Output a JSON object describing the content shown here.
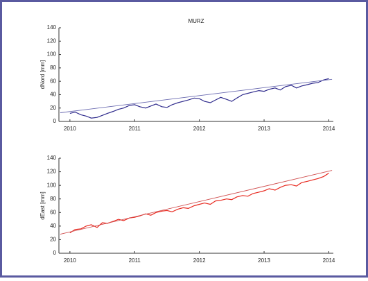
{
  "chart_data": [
    {
      "type": "line",
      "title": "MURZ",
      "y_label": "dNord [mm]",
      "x": [
        2010,
        2010.08,
        2010.17,
        2010.25,
        2010.33,
        2010.42,
        2010.5,
        2010.58,
        2010.67,
        2010.75,
        2010.83,
        2010.92,
        2011,
        2011.08,
        2011.17,
        2011.25,
        2011.33,
        2011.42,
        2011.5,
        2011.58,
        2011.67,
        2011.75,
        2011.83,
        2011.92,
        2012,
        2012.08,
        2012.17,
        2012.25,
        2012.33,
        2012.42,
        2012.5,
        2012.58,
        2012.67,
        2012.75,
        2012.83,
        2012.92,
        2013,
        2013.08,
        2013.17,
        2013.25,
        2013.33,
        2013.42,
        2013.5,
        2013.58,
        2013.67,
        2013.75,
        2013.83,
        2013.92,
        2014
      ],
      "series": [
        {
          "color": "#2e2a8c",
          "values": [
            12,
            14,
            10,
            8,
            5,
            6,
            9,
            12,
            15,
            18,
            20,
            24,
            25,
            22,
            20,
            23,
            26,
            22,
            21,
            25,
            28,
            30,
            32,
            35,
            34,
            30,
            28,
            32,
            36,
            33,
            30,
            35,
            40,
            42,
            44,
            46,
            45,
            48,
            50,
            47,
            52,
            54,
            50,
            53,
            55,
            57,
            58,
            62,
            64
          ]
        },
        {
          "color": "#6a6ab0",
          "x": [
            2009.85,
            2014.05
          ],
          "values": [
            13,
            63
          ]
        }
      ],
      "xlim": [
        2009.83,
        2014.07
      ],
      "ylim": [
        0,
        140
      ],
      "xticks": [
        2010,
        2011,
        2012,
        2013,
        2014
      ],
      "yticks": [
        0,
        20,
        40,
        60,
        80,
        100,
        120,
        140
      ]
    },
    {
      "type": "line",
      "y_label": "dEast [mm]",
      "x": [
        2010,
        2010.08,
        2010.17,
        2010.25,
        2010.33,
        2010.42,
        2010.5,
        2010.58,
        2010.67,
        2010.75,
        2010.83,
        2010.92,
        2011,
        2011.08,
        2011.17,
        2011.25,
        2011.33,
        2011.42,
        2011.5,
        2011.58,
        2011.67,
        2011.75,
        2011.83,
        2011.92,
        2012,
        2012.08,
        2012.17,
        2012.25,
        2012.33,
        2012.42,
        2012.5,
        2012.58,
        2012.67,
        2012.75,
        2012.83,
        2012.92,
        2013,
        2013.08,
        2013.17,
        2013.25,
        2013.33,
        2013.42,
        2013.5,
        2013.58,
        2013.67,
        2013.75,
        2013.83,
        2013.92,
        2014
      ],
      "series": [
        {
          "color": "#e8281e",
          "values": [
            30,
            35,
            36,
            40,
            42,
            38,
            45,
            44,
            47,
            50,
            48,
            52,
            53,
            55,
            58,
            56,
            60,
            62,
            63,
            61,
            65,
            67,
            66,
            70,
            72,
            74,
            72,
            77,
            78,
            80,
            79,
            83,
            85,
            84,
            88,
            90,
            92,
            95,
            93,
            97,
            100,
            101,
            99,
            104,
            106,
            108,
            110,
            113,
            118
          ]
        },
        {
          "color": "#d05050",
          "x": [
            2009.85,
            2014.05
          ],
          "values": [
            28,
            122
          ]
        }
      ],
      "xlim": [
        2009.83,
        2014.07
      ],
      "ylim": [
        0,
        140
      ],
      "xticks": [
        2010,
        2011,
        2012,
        2013,
        2014
      ],
      "yticks": [
        0,
        20,
        40,
        60,
        80,
        100,
        120,
        140
      ]
    }
  ]
}
